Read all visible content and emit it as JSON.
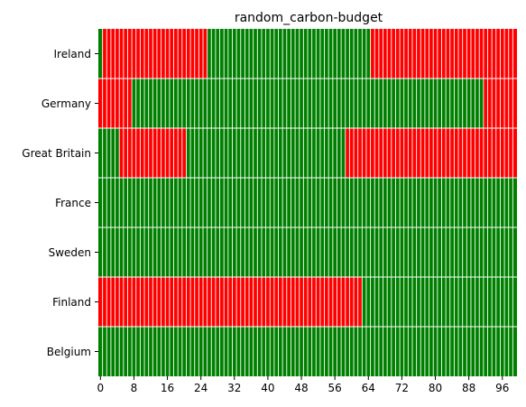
{
  "chart_data": {
    "type": "heatmap",
    "title": "random_carbon-budget",
    "xlabel": "",
    "ylabel": "",
    "x_columns": 100,
    "xlim": [
      0,
      100
    ],
    "x_ticks": [
      0,
      8,
      16,
      24,
      32,
      40,
      48,
      56,
      64,
      72,
      80,
      88,
      96
    ],
    "categories": [
      "Ireland",
      "Germany",
      "Great Britain",
      "France",
      "Sweden",
      "Finland",
      "Belgium"
    ],
    "value_legend": {
      "0": "red",
      "1": "green"
    },
    "colors": {
      "0": "#ff0000",
      "1": "#008000"
    },
    "grid_color": "#ffffff",
    "rows": [
      "1000000000000000000000000011111111111111111111111111111111111111100000000000000000000000000000000000",
      "0000000011111111111111111111111111111111111111111111111111111111111111111111111111111111111100000000",
      "1111100000000000000001111111111111111111111111111111111111100000000000000000000000000000000000000000",
      "1111111111111111111111111111111111111111111111111111111111111111111111111111111111111111111111111111",
      "1111111111111111111111111111111111111111111111111111111111111111111111111111111111111111111111111111",
      "0000000000000000000000000000000000000000000000000000000000000001111111111111111111111111111111111111",
      "1111111111111111111111111111111111111111111111111111111111111111111111111111111111111111111111111111"
    ]
  }
}
